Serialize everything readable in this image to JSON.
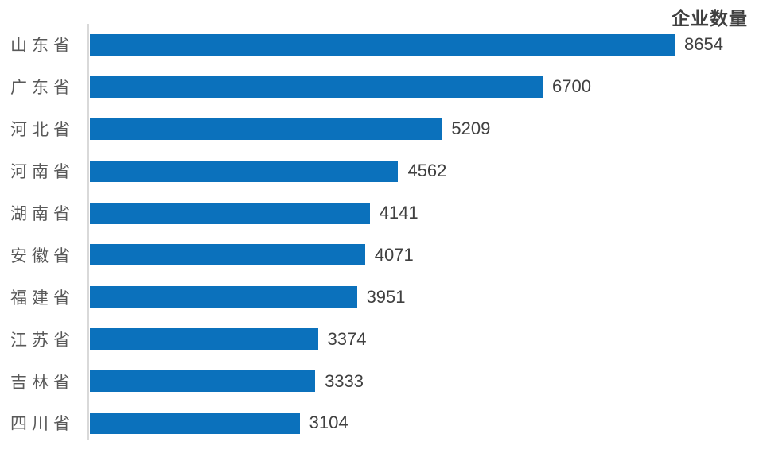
{
  "chart_data": {
    "type": "bar",
    "orientation": "horizontal",
    "title": "企业数量",
    "categories": [
      "山东省",
      "广东省",
      "河北省",
      "河南省",
      "湖南省",
      "安徽省",
      "福建省",
      "江苏省",
      "吉林省",
      "四川省"
    ],
    "values": [
      8654,
      6700,
      5209,
      4562,
      4141,
      4071,
      3951,
      3374,
      3333,
      3104
    ],
    "xlabel": "",
    "ylabel": "",
    "xlim": [
      0,
      8654
    ],
    "grid": false,
    "data_labels": true,
    "legend": "none",
    "colors": {
      "bar": "#0B71BC",
      "title": "#404040",
      "value_label": "#404040",
      "category_label": "#595959",
      "axis_line": "#D9D9D9"
    }
  }
}
